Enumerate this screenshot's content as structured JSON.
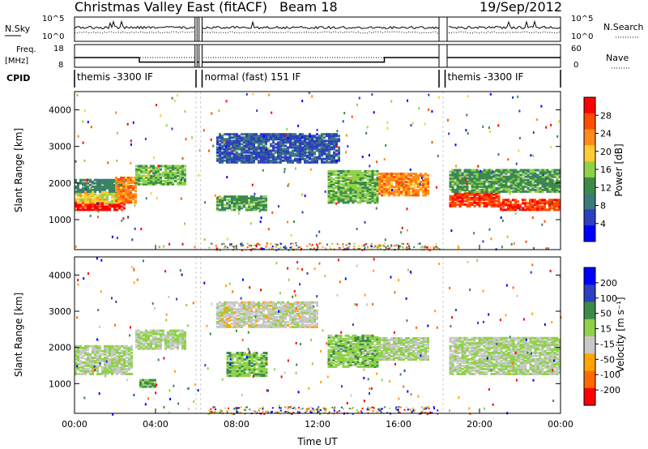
{
  "header": {
    "title": "Christmas Valley East (fitACF)",
    "beam": "Beam 18",
    "date": "19/Sep/2012"
  },
  "noise_panel": {
    "left_label": "N.Sky",
    "right_label": "N.Search",
    "ticks_left": [
      "10^5",
      "10^0"
    ],
    "ticks_right": [
      "10^5",
      "10^0"
    ]
  },
  "freq_panel": {
    "left_label_1": "Freq.",
    "left_label_2": "[MHz]",
    "right_label": "Nave",
    "ticks_left": [
      "18",
      "8"
    ],
    "ticks_right": [
      "60",
      "0"
    ]
  },
  "cpid_panel": {
    "label": "CPID",
    "segments": [
      {
        "start_h": 0.0,
        "end_h": 6.0,
        "text": "themis -3300 IF"
      },
      {
        "start_h": 6.3,
        "end_h": 18.0,
        "text": "normal (fast) 151 IF"
      },
      {
        "start_h": 18.3,
        "end_h": 24.0,
        "text": "themis -3300 IF"
      }
    ]
  },
  "xaxis": {
    "label": "Time UT",
    "ticks": [
      "00:00",
      "04:00",
      "08:00",
      "12:00",
      "16:00",
      "20:00",
      "00:00"
    ]
  },
  "power_panel": {
    "ylabel": "Slant Range [km]",
    "yticks": [
      "4000",
      "3000",
      "2000",
      "1000"
    ],
    "colorbar_label": "Power [dB]",
    "colorbar_ticks": [
      "28",
      "24",
      "20",
      "16",
      "12",
      "8",
      "4"
    ]
  },
  "velocity_panel": {
    "ylabel": "Slant Range [km]",
    "yticks": [
      "4000",
      "3000",
      "2000",
      "1000"
    ],
    "colorbar_label": "Velocity [m s⁻¹]",
    "colorbar_ticks": [
      "200",
      "100",
      "50",
      "15",
      "-15",
      "-50",
      "-100",
      "-200"
    ]
  },
  "chart_data": [
    {
      "type": "heatmap",
      "name": "power",
      "title": "Christmas Valley East (fitACF)",
      "xlabel": "Time UT",
      "ylabel": "Slant Range [km]",
      "xlim": [
        0,
        24
      ],
      "ylim": [
        180,
        4500
      ],
      "zlabel": "Power [dB]",
      "zlim": [
        0,
        30
      ],
      "colors": [
        "#0000ff",
        "#2e3fbf",
        "#3a7a7a",
        "#3c8a4a",
        "#8fd24a",
        "#ffcc33",
        "#ff8c1a",
        "#ff4d00",
        "#ff0000"
      ],
      "data_gaps_h": [
        [
          5.95,
          6.05
        ],
        [
          6.15,
          6.3
        ],
        [
          18.0,
          18.4
        ]
      ],
      "bands": [
        {
          "t0": 0.0,
          "t1": 2.5,
          "r0": 1300,
          "r1": 1500,
          "z": 28
        },
        {
          "t0": 0.0,
          "t1": 2.5,
          "r0": 1500,
          "r1": 1800,
          "z": 18
        },
        {
          "t0": 0.0,
          "t1": 2.5,
          "r0": 1800,
          "r1": 2150,
          "z": 10
        },
        {
          "t0": 2.0,
          "t1": 3.0,
          "r0": 1500,
          "r1": 2200,
          "z": 22
        },
        {
          "t0": 3.0,
          "t1": 5.5,
          "r0": 2000,
          "r1": 2500,
          "z": 14
        },
        {
          "t0": 7.0,
          "t1": 9.5,
          "r0": 1300,
          "r1": 1700,
          "z": 12
        },
        {
          "t0": 7.0,
          "t1": 13.0,
          "r0": 2600,
          "r1": 3400,
          "z": 6
        },
        {
          "t0": 12.5,
          "t1": 15.0,
          "r0": 1500,
          "r1": 2400,
          "z": 14
        },
        {
          "t0": 15.0,
          "t1": 17.5,
          "r0": 1700,
          "r1": 2300,
          "z": 22
        },
        {
          "t0": 18.5,
          "t1": 21.0,
          "r0": 1400,
          "r1": 1800,
          "z": 26
        },
        {
          "t0": 18.5,
          "t1": 24.0,
          "r0": 1800,
          "r1": 2400,
          "z": 12
        },
        {
          "t0": 21.0,
          "t1": 24.0,
          "r0": 1300,
          "r1": 1600,
          "z": 26
        }
      ]
    },
    {
      "type": "heatmap",
      "name": "velocity",
      "xlabel": "Time UT",
      "ylabel": "Slant Range [km]",
      "xlim": [
        0,
        24
      ],
      "ylim": [
        180,
        4500
      ],
      "zlabel": "Velocity [m s⁻¹]",
      "zlim": [
        -200,
        200
      ],
      "colors": [
        "#ff0000",
        "#ff6a00",
        "#ffa500",
        "#c8c8c8",
        "#8fd24a",
        "#3c8a4a",
        "#2e3fbf",
        "#0000ff"
      ],
      "bands": [
        {
          "t0": 0.0,
          "t1": 2.8,
          "r0": 1300,
          "r1": 2100,
          "z": 0
        },
        {
          "t0": 3.0,
          "t1": 5.5,
          "r0": 2000,
          "r1": 2500,
          "z": 0
        },
        {
          "t0": 3.2,
          "t1": 4.0,
          "r0": 950,
          "r1": 1150,
          "z": 60
        },
        {
          "t0": 7.5,
          "t1": 9.5,
          "r0": 1250,
          "r1": 1900,
          "z": 40
        },
        {
          "t0": 7.0,
          "t1": 12.0,
          "r0": 2600,
          "r1": 3300,
          "z": -20
        },
        {
          "t0": 12.5,
          "t1": 15.0,
          "r0": 1500,
          "r1": 2400,
          "z": 30
        },
        {
          "t0": 15.0,
          "t1": 17.5,
          "r0": 1700,
          "r1": 2300,
          "z": 0
        },
        {
          "t0": 18.5,
          "t1": 24.0,
          "r0": 1300,
          "r1": 2300,
          "z": 0
        }
      ]
    },
    {
      "type": "line",
      "name": "frequency",
      "xlabel": "Time UT",
      "ylabel": "Freq. [MHz]",
      "ylim": [
        8,
        18
      ],
      "x": [
        0,
        3.2,
        3.2,
        15.3,
        15.3,
        24
      ],
      "y": [
        13,
        13,
        11,
        11,
        13,
        13
      ]
    }
  ]
}
